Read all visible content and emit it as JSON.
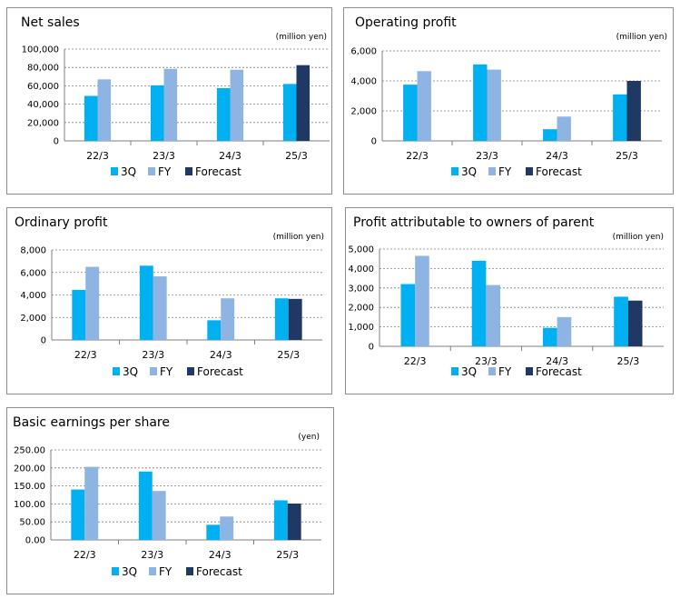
{
  "colors": {
    "3Q": "#00b0f0",
    "FY": "#8eb4e3",
    "Forecast": "#1f3864"
  },
  "chart_data": [
    {
      "id": "net-sales",
      "type": "bar",
      "title": "Net sales",
      "unit": "(million yen)",
      "categories": [
        "22/3",
        "23/3",
        "24/3",
        "25/3"
      ],
      "series": [
        {
          "name": "3Q",
          "values": [
            49000,
            60500,
            57500,
            62000
          ]
        },
        {
          "name": "FY",
          "values": [
            67000,
            78500,
            77500,
            null
          ]
        },
        {
          "name": "Forecast",
          "values": [
            null,
            null,
            null,
            82500
          ]
        }
      ],
      "ylim": [
        0,
        100000
      ],
      "yticks": [
        0,
        20000,
        40000,
        60000,
        80000,
        100000
      ],
      "ytick_labels": [
        "0",
        "20,000",
        "40,000",
        "60,000",
        "80,000",
        "100,000"
      ],
      "grid": true,
      "legend": "bottom"
    },
    {
      "id": "operating-profit",
      "type": "bar",
      "title": "Operating profit",
      "unit": "(million yen)",
      "categories": [
        "22/3",
        "23/3",
        "24/3",
        "25/3"
      ],
      "series": [
        {
          "name": "3Q",
          "values": [
            3750,
            5100,
            780,
            3100
          ]
        },
        {
          "name": "FY",
          "values": [
            4650,
            4750,
            1620,
            null
          ]
        },
        {
          "name": "Forecast",
          "values": [
            null,
            null,
            null,
            4000
          ]
        }
      ],
      "ylim": [
        0,
        6000
      ],
      "yticks": [
        0,
        2000,
        4000,
        6000
      ],
      "ytick_labels": [
        "0",
        "2,000",
        "4,000",
        "6,000"
      ],
      "grid": true,
      "legend": "bottom"
    },
    {
      "id": "ordinary-profit",
      "type": "bar",
      "title": "Ordinary profit",
      "unit": "(million yen)",
      "categories": [
        "22/3",
        "23/3",
        "24/3",
        "25/3"
      ],
      "series": [
        {
          "name": "3Q",
          "values": [
            4450,
            6600,
            1750,
            3700
          ]
        },
        {
          "name": "FY",
          "values": [
            6500,
            5650,
            3700,
            null
          ]
        },
        {
          "name": "Forecast",
          "values": [
            null,
            null,
            null,
            3650
          ]
        }
      ],
      "ylim": [
        0,
        8000
      ],
      "yticks": [
        0,
        2000,
        4000,
        6000,
        8000
      ],
      "ytick_labels": [
        "0",
        "2,000",
        "4,000",
        "6,000",
        "8,000"
      ],
      "grid": true,
      "legend": "bottom"
    },
    {
      "id": "profit-owners",
      "type": "bar",
      "title": "Profit attributable to owners of parent",
      "unit": "(million yen)",
      "categories": [
        "22/3",
        "23/3",
        "24/3",
        "25/3"
      ],
      "series": [
        {
          "name": "3Q",
          "values": [
            3200,
            4400,
            950,
            2550
          ]
        },
        {
          "name": "FY",
          "values": [
            4650,
            3150,
            1500,
            null
          ]
        },
        {
          "name": "Forecast",
          "values": [
            null,
            null,
            null,
            2350
          ]
        }
      ],
      "ylim": [
        0,
        5000
      ],
      "yticks": [
        0,
        1000,
        2000,
        3000,
        4000,
        5000
      ],
      "ytick_labels": [
        "0",
        "1,000",
        "2,000",
        "3,000",
        "4,000",
        "5,000"
      ],
      "grid": true,
      "legend": "bottom"
    },
    {
      "id": "eps",
      "type": "bar",
      "title": "Basic earnings per share",
      "unit": "(yen)",
      "categories": [
        "22/3",
        "23/3",
        "24/3",
        "25/3"
      ],
      "series": [
        {
          "name": "3Q",
          "values": [
            140,
            190,
            42,
            110
          ]
        },
        {
          "name": "FY",
          "values": [
            203,
            136,
            65,
            null
          ]
        },
        {
          "name": "Forecast",
          "values": [
            null,
            null,
            null,
            101
          ]
        }
      ],
      "ylim": [
        0,
        250
      ],
      "yticks": [
        0,
        50,
        100,
        150,
        200,
        250
      ],
      "ytick_labels": [
        "0.00",
        "50.00",
        "100.00",
        "150.00",
        "200.00",
        "250.00"
      ],
      "grid": true,
      "legend": "bottom"
    }
  ]
}
